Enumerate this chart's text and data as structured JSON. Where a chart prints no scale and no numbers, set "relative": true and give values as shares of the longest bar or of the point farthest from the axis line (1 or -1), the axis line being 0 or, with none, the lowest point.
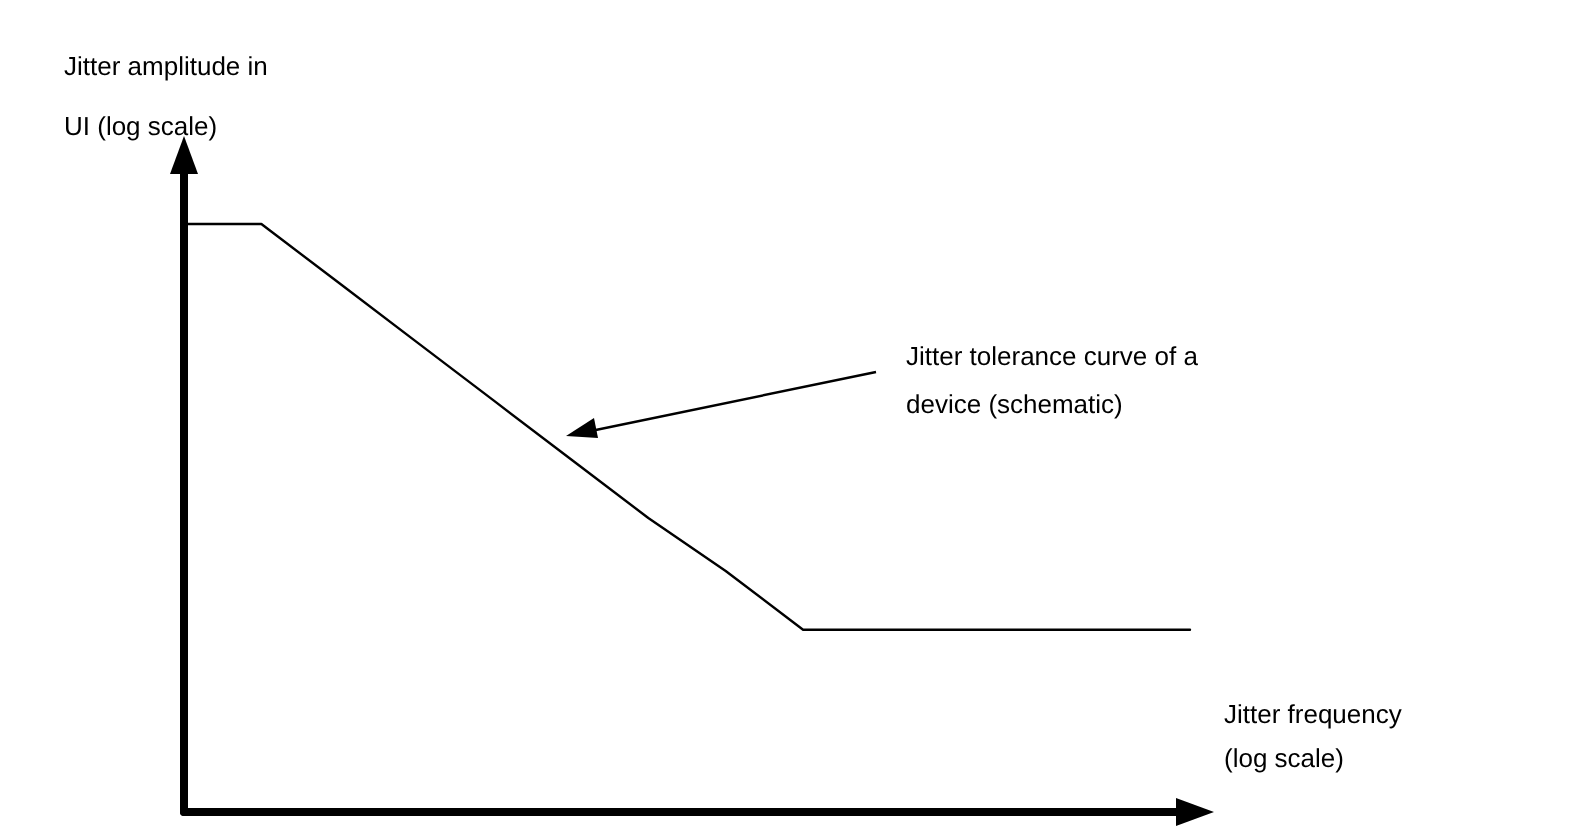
{
  "chart_data": {
    "type": "line",
    "relative": true,
    "xlabel": "Jitter frequency (log scale)",
    "ylabel": "Jitter amplitude in UI (log scale)",
    "annotations": [
      "Jitter tolerance curve of a device (schematic)"
    ],
    "categories": [
      null,
      null,
      null,
      null,
      null,
      null,
      null,
      null,
      null,
      null,
      null,
      null,
      null,
      null
    ],
    "series": [
      {
        "color": "#000000",
        "values": [
          1,
          1,
          0.9,
          0.8,
          0.7,
          0.6,
          0.5,
          0.41,
          0.31,
          0.31,
          0.31,
          0.31,
          0.31,
          0.31
        ]
      }
    ],
    "marker": "none",
    "line_style": "solid",
    "grid": false,
    "tick_labels": false
  }
}
